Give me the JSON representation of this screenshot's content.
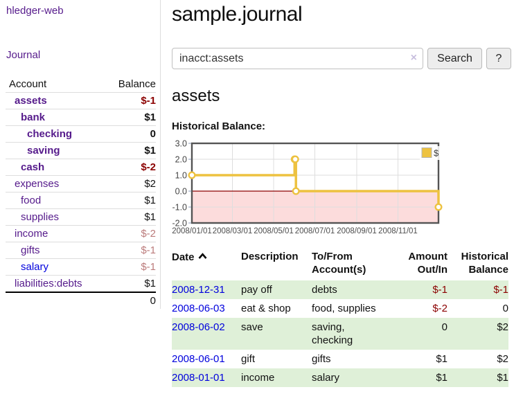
{
  "colors": {
    "link_purple": "#551a8b",
    "link_blue": "#0000dd",
    "negative_strong": "#8b0000",
    "negative_weak": "#bb7b7b",
    "row_stripe_green": "#dff0d8",
    "chart_gold": "#edc240",
    "chart_negative_fill": "#fcdcdc",
    "chart_zero_line": "#8b0000"
  },
  "sidebar": {
    "app_title": "hledger-web",
    "nav_journal": "Journal",
    "accounts": {
      "header_account": "Account",
      "header_balance": "Balance",
      "rows": [
        {
          "name": "assets",
          "balance": "$-1",
          "depth": 1,
          "bold": true
        },
        {
          "name": "bank",
          "balance": "$1",
          "depth": 2,
          "bold": true
        },
        {
          "name": "checking",
          "balance": "0",
          "depth": 3,
          "bold": true
        },
        {
          "name": "saving",
          "balance": "$1",
          "depth": 3,
          "bold": true
        },
        {
          "name": "cash",
          "balance": "$-2",
          "depth": 2,
          "bold": true
        },
        {
          "name": "expenses",
          "balance": "$2",
          "depth": 1,
          "bold": false
        },
        {
          "name": "food",
          "balance": "$1",
          "depth": 2,
          "bold": false
        },
        {
          "name": "supplies",
          "balance": "$1",
          "depth": 2,
          "bold": false
        },
        {
          "name": "income",
          "balance": "$-2",
          "depth": 1,
          "bold": false
        },
        {
          "name": "gifts",
          "balance": "$-1",
          "depth": 2,
          "bold": false
        },
        {
          "name": "salary",
          "balance": "$-1",
          "depth": 2,
          "bold": false,
          "unvisited": true
        },
        {
          "name": "liabilities:debts",
          "balance": "$1",
          "depth": 1,
          "bold": false
        }
      ],
      "total": "0"
    }
  },
  "header": {
    "title": "sample.journal"
  },
  "search": {
    "value": "inacct:assets",
    "clear_icon": "×",
    "button_label": "Search",
    "help_label": "?"
  },
  "account_page": {
    "title": "assets",
    "chart_label": "Historical Balance:"
  },
  "chart_data": {
    "type": "line",
    "step": true,
    "title": "Historical Balance",
    "series": [
      {
        "name": "$",
        "points": [
          {
            "date": "2008-01-01",
            "value": 1
          },
          {
            "date": "2008-06-01",
            "value": 2
          },
          {
            "date": "2008-06-02",
            "value": 2
          },
          {
            "date": "2008-06-03",
            "value": 0
          },
          {
            "date": "2008-12-31",
            "value": -1
          }
        ]
      }
    ],
    "x_range": [
      "2008-01-01",
      "2008-12-31"
    ],
    "x_tick_labels": [
      "2008/01/01",
      "2008/03/01",
      "2008/05/01",
      "2008/07/01",
      "2008/09/01",
      "2008/11/01"
    ],
    "y_ticks": [
      3.0,
      2.0,
      1.0,
      0.0,
      -1.0,
      -2.0
    ],
    "ylim": [
      -2,
      3
    ],
    "grid": true,
    "legend_position": "top-right",
    "legend": [
      {
        "label": "$",
        "color": "#edc240"
      }
    ],
    "negative_region_shaded": true
  },
  "register": {
    "headers": {
      "date": "Date",
      "sort_icon": "chevron-up",
      "description": "Description",
      "accounts": "To/From Account(s)",
      "amount": "Amount Out/In",
      "balance": "Historical Balance"
    },
    "rows": [
      {
        "date": "2008-12-31",
        "description": "pay off",
        "accounts": "debts",
        "amount": "$-1",
        "balance": "$-1"
      },
      {
        "date": "2008-06-03",
        "description": "eat & shop",
        "accounts": "food, supplies",
        "amount": "$-2",
        "balance": "0"
      },
      {
        "date": "2008-06-02",
        "description": "save",
        "accounts": "saving, checking",
        "amount": "0",
        "balance": "$2"
      },
      {
        "date": "2008-06-01",
        "description": "gift",
        "accounts": "gifts",
        "amount": "$1",
        "balance": "$2"
      },
      {
        "date": "2008-01-01",
        "description": "income",
        "accounts": "salary",
        "amount": "$1",
        "balance": "$1"
      }
    ]
  }
}
